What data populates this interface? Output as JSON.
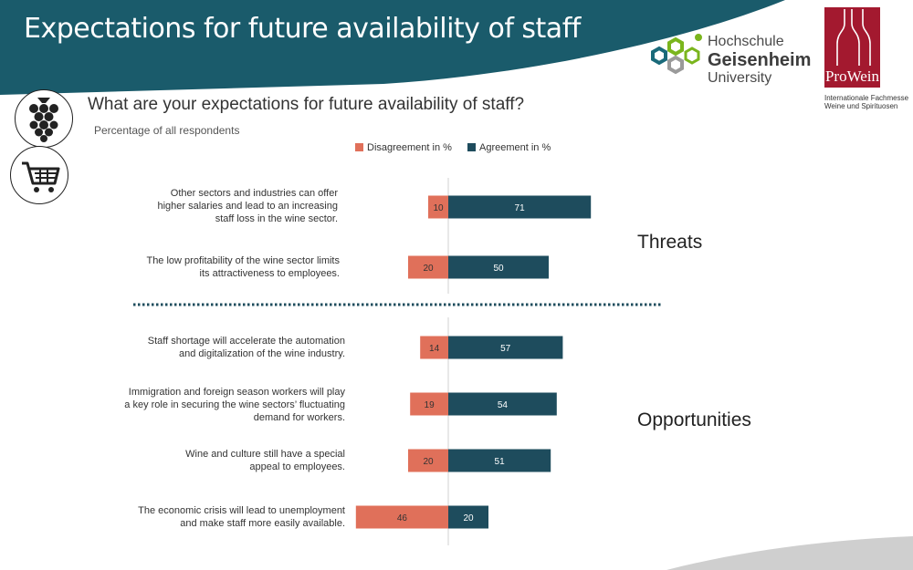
{
  "header": {
    "title": "Expectations for future availability of staff"
  },
  "logos": {
    "university": {
      "line1": "Hochschule",
      "line2": "Geisenheim",
      "line3": "University"
    },
    "prowein": {
      "name": "ProWein",
      "subtitle_line1": "Internationale Fachmesse",
      "subtitle_line2": "Weine und Spirituosen"
    }
  },
  "icons": [
    "grapes-icon",
    "shopping-cart-icon"
  ],
  "colors": {
    "header": "#1a5b6b",
    "disagreement": "#e0705a",
    "agreement": "#1e4c5d"
  },
  "chart_data": {
    "type": "bar",
    "orientation": "horizontal-diverging",
    "title": "What are your expectations for future availability of staff?",
    "subtitle": "Percentage of all respondents",
    "series": [
      {
        "name": "Disagreement in %",
        "values": [
          10,
          20,
          14,
          19,
          20,
          46
        ]
      },
      {
        "name": "Agreement in %",
        "values": [
          71,
          50,
          57,
          54,
          51,
          20
        ]
      }
    ],
    "categories": [
      [
        "Other sectors and industries can offer",
        "higher salaries and lead to an increasing",
        "staff loss in the wine sector."
      ],
      [
        "The low profitability of the wine sector limits",
        "its attractiveness to employees."
      ],
      [
        "Staff shortage will accelerate the automation",
        "and digitalization of the wine industry."
      ],
      [
        "Immigration and foreign season workers will play",
        "a key role in securing the wine sectors’ fluctuating",
        "demand for workers."
      ],
      [
        "Wine and culture still have a special",
        "appeal to employees."
      ],
      [
        "The economic crisis will lead to unemployment",
        "and make staff more easily available."
      ]
    ],
    "groups": [
      {
        "label": "Threats",
        "rows": [
          0,
          1
        ]
      },
      {
        "label": "Opportunities",
        "rows": [
          2,
          3,
          4,
          5
        ]
      }
    ],
    "legend_position": "top"
  }
}
